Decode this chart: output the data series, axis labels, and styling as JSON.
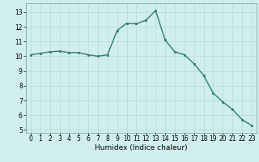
{
  "x": [
    0,
    1,
    2,
    3,
    4,
    5,
    6,
    7,
    8,
    9,
    10,
    11,
    12,
    13,
    14,
    15,
    16,
    17,
    18,
    19,
    20,
    21,
    22,
    23
  ],
  "y": [
    10.1,
    10.2,
    10.3,
    10.35,
    10.25,
    10.25,
    10.1,
    10.0,
    10.1,
    11.75,
    12.25,
    12.2,
    12.45,
    13.1,
    11.1,
    10.3,
    10.1,
    9.5,
    8.7,
    7.5,
    6.9,
    6.4,
    5.7,
    5.3
  ],
  "line_color": "#2e7d6e",
  "marker": "s",
  "marker_size": 1.8,
  "bg_color": "#d0eeee",
  "grid_color": "#b8d8d8",
  "xlabel": "Humidex (Indice chaleur)",
  "ylim": [
    4.8,
    13.6
  ],
  "xlim": [
    -0.5,
    23.5
  ],
  "yticks": [
    5,
    6,
    7,
    8,
    9,
    10,
    11,
    12,
    13
  ],
  "xticks": [
    0,
    1,
    2,
    3,
    4,
    5,
    6,
    7,
    8,
    9,
    10,
    11,
    12,
    13,
    14,
    15,
    16,
    17,
    18,
    19,
    20,
    21,
    22,
    23
  ],
  "tick_fontsize": 5.5,
  "xlabel_fontsize": 6.5,
  "linewidth": 1.0
}
